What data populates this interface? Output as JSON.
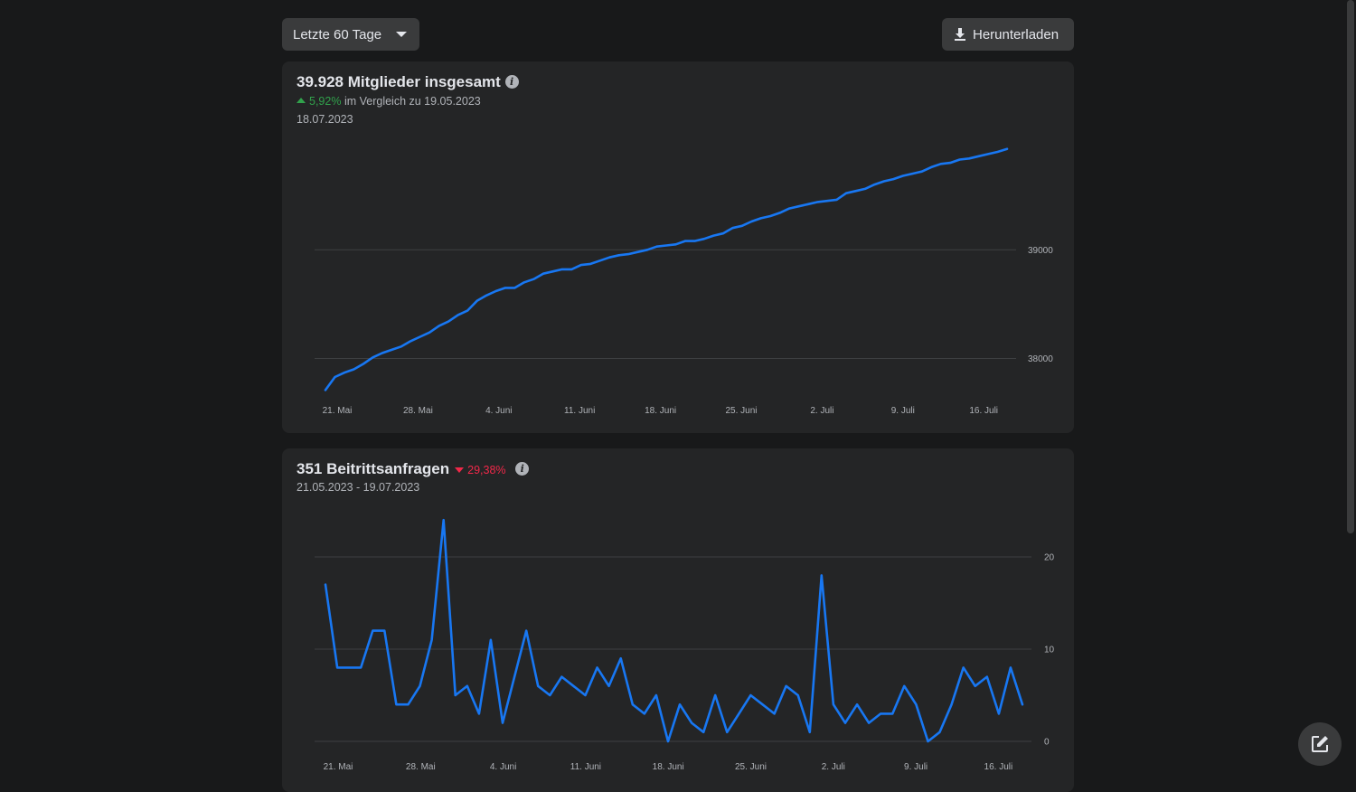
{
  "toolbar": {
    "range_label": "Letzte 60 Tage",
    "download_label": "Herunterladen"
  },
  "members": {
    "title": "39.928 Mitglieder insgesamt",
    "change_pct": "5,92%",
    "change_text": "im Vergleich zu 19.05.2023",
    "date": "18.07.2023"
  },
  "requests": {
    "title": "351 Beitrittsanfragen",
    "change_pct": "29,38%",
    "date_range": "21.05.2023 - 19.07.2023"
  },
  "colors": {
    "line": "#1877f2",
    "positive": "#31a24c",
    "negative": "#f02849"
  },
  "chart_data": [
    {
      "type": "line",
      "title": "39.928 Mitglieder insgesamt",
      "x_tick_labels": [
        "21. Mai",
        "28. Mai",
        "4. Juni",
        "11. Juni",
        "18. Juni",
        "25. Juni",
        "2. Juli",
        "9. Juli",
        "16. Juli"
      ],
      "y_tick_labels": [
        "38000",
        "39000"
      ],
      "ylim": [
        37680,
        40050
      ],
      "grid": true,
      "x_start": "20.05.2023",
      "values": [
        37710,
        37830,
        37870,
        37900,
        37950,
        38010,
        38050,
        38080,
        38110,
        38160,
        38200,
        38240,
        38300,
        38340,
        38400,
        38440,
        38530,
        38580,
        38620,
        38650,
        38650,
        38700,
        38730,
        38780,
        38800,
        38820,
        38820,
        38860,
        38870,
        38900,
        38930,
        38950,
        38960,
        38980,
        39000,
        39030,
        39040,
        39050,
        39080,
        39080,
        39100,
        39130,
        39150,
        39200,
        39220,
        39260,
        39290,
        39310,
        39340,
        39380,
        39400,
        39420,
        39440,
        39450,
        39460,
        39520,
        39540,
        39560,
        39600,
        39630,
        39650,
        39680,
        39700,
        39720,
        39760,
        39790,
        39800,
        39830,
        39840,
        39860,
        39880,
        39900,
        39928
      ],
      "series": [
        {
          "name": "",
          "color": "#1877f2"
        }
      ]
    },
    {
      "type": "line",
      "title": "351 Beitrittsanfragen",
      "x_tick_labels": [
        "21. Mai",
        "28. Mai",
        "4. Juni",
        "11. Juni",
        "18. Juni",
        "25. Juni",
        "2. Juli",
        "9. Juli",
        "16. Juli"
      ],
      "y_tick_labels": [
        "0",
        "10",
        "20"
      ],
      "ylim": [
        0,
        25
      ],
      "grid": true,
      "x_start": "20.05.2023",
      "values": [
        17,
        8,
        8,
        8,
        12,
        12,
        4,
        4,
        6,
        11,
        24,
        5,
        6,
        3,
        11,
        2,
        7,
        12,
        6,
        5,
        7,
        6,
        5,
        8,
        6,
        9,
        4,
        3,
        5,
        0,
        4,
        2,
        1,
        5,
        1,
        3,
        5,
        4,
        3,
        6,
        5,
        1,
        18,
        4,
        2,
        4,
        2,
        3,
        3,
        6,
        4,
        0,
        1,
        4,
        8,
        6,
        7,
        3,
        8,
        4
      ],
      "series": [
        {
          "name": "",
          "color": "#1877f2"
        }
      ]
    }
  ]
}
